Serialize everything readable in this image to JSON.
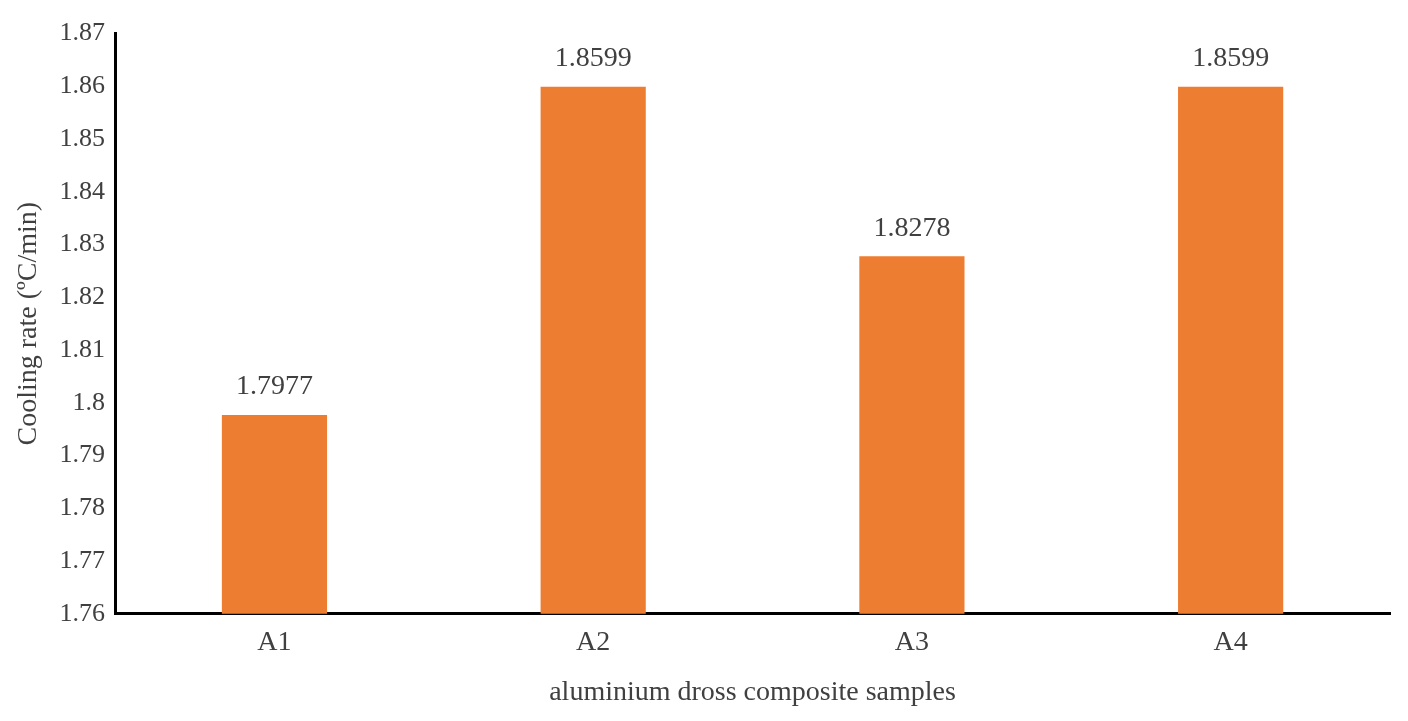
{
  "chart_data": {
    "type": "bar",
    "xlabel": "aluminium dross composite samples",
    "ylabel": "Cooling rate (ºC/min)",
    "categories": [
      "A1",
      "A2",
      "A3",
      "A4"
    ],
    "values": [
      1.7977,
      1.8599,
      1.8278,
      1.8599
    ],
    "color": "#ed7d31",
    "ylim": [
      1.76,
      1.87
    ],
    "yticks": [
      1.76,
      1.77,
      1.78,
      1.79,
      1.8,
      1.81,
      1.82,
      1.83,
      1.84,
      1.85,
      1.86,
      1.87
    ],
    "grid": false,
    "legend": false,
    "data_labels": true
  }
}
